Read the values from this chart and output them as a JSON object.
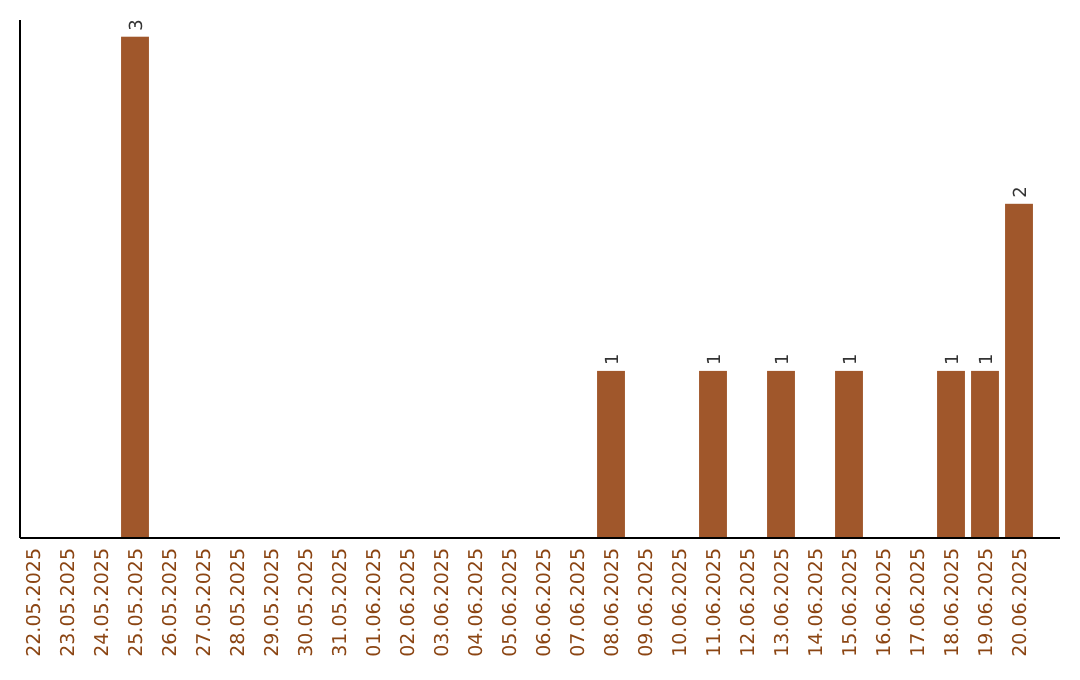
{
  "chart_data": {
    "type": "bar",
    "categories": [
      "22.05.2025",
      "23.05.2025",
      "24.05.2025",
      "25.05.2025",
      "26.05.2025",
      "27.05.2025",
      "28.05.2025",
      "29.05.2025",
      "30.05.2025",
      "31.05.2025",
      "01.06.2025",
      "02.06.2025",
      "03.06.2025",
      "04.06.2025",
      "05.06.2025",
      "06.06.2025",
      "07.06.2025",
      "08.06.2025",
      "09.06.2025",
      "10.06.2025",
      "11.06.2025",
      "12.06.2025",
      "13.06.2025",
      "14.06.2025",
      "15.06.2025",
      "16.06.2025",
      "17.06.2025",
      "18.06.2025",
      "19.06.2025",
      "20.06.2025"
    ],
    "values": [
      0,
      0,
      0,
      3,
      0,
      0,
      0,
      0,
      0,
      0,
      0,
      0,
      0,
      0,
      0,
      0,
      0,
      1,
      0,
      0,
      1,
      0,
      1,
      0,
      1,
      0,
      0,
      1,
      1,
      2
    ],
    "value_labels": [
      null,
      null,
      null,
      "3",
      null,
      null,
      null,
      null,
      null,
      null,
      null,
      null,
      null,
      null,
      null,
      null,
      null,
      "1",
      null,
      null,
      "1",
      null,
      "1",
      null,
      "1",
      null,
      null,
      "1",
      "1",
      "2"
    ],
    "color": "#a0572b",
    "ylim": [
      0,
      3.1
    ],
    "tick_labels": "x"
  }
}
